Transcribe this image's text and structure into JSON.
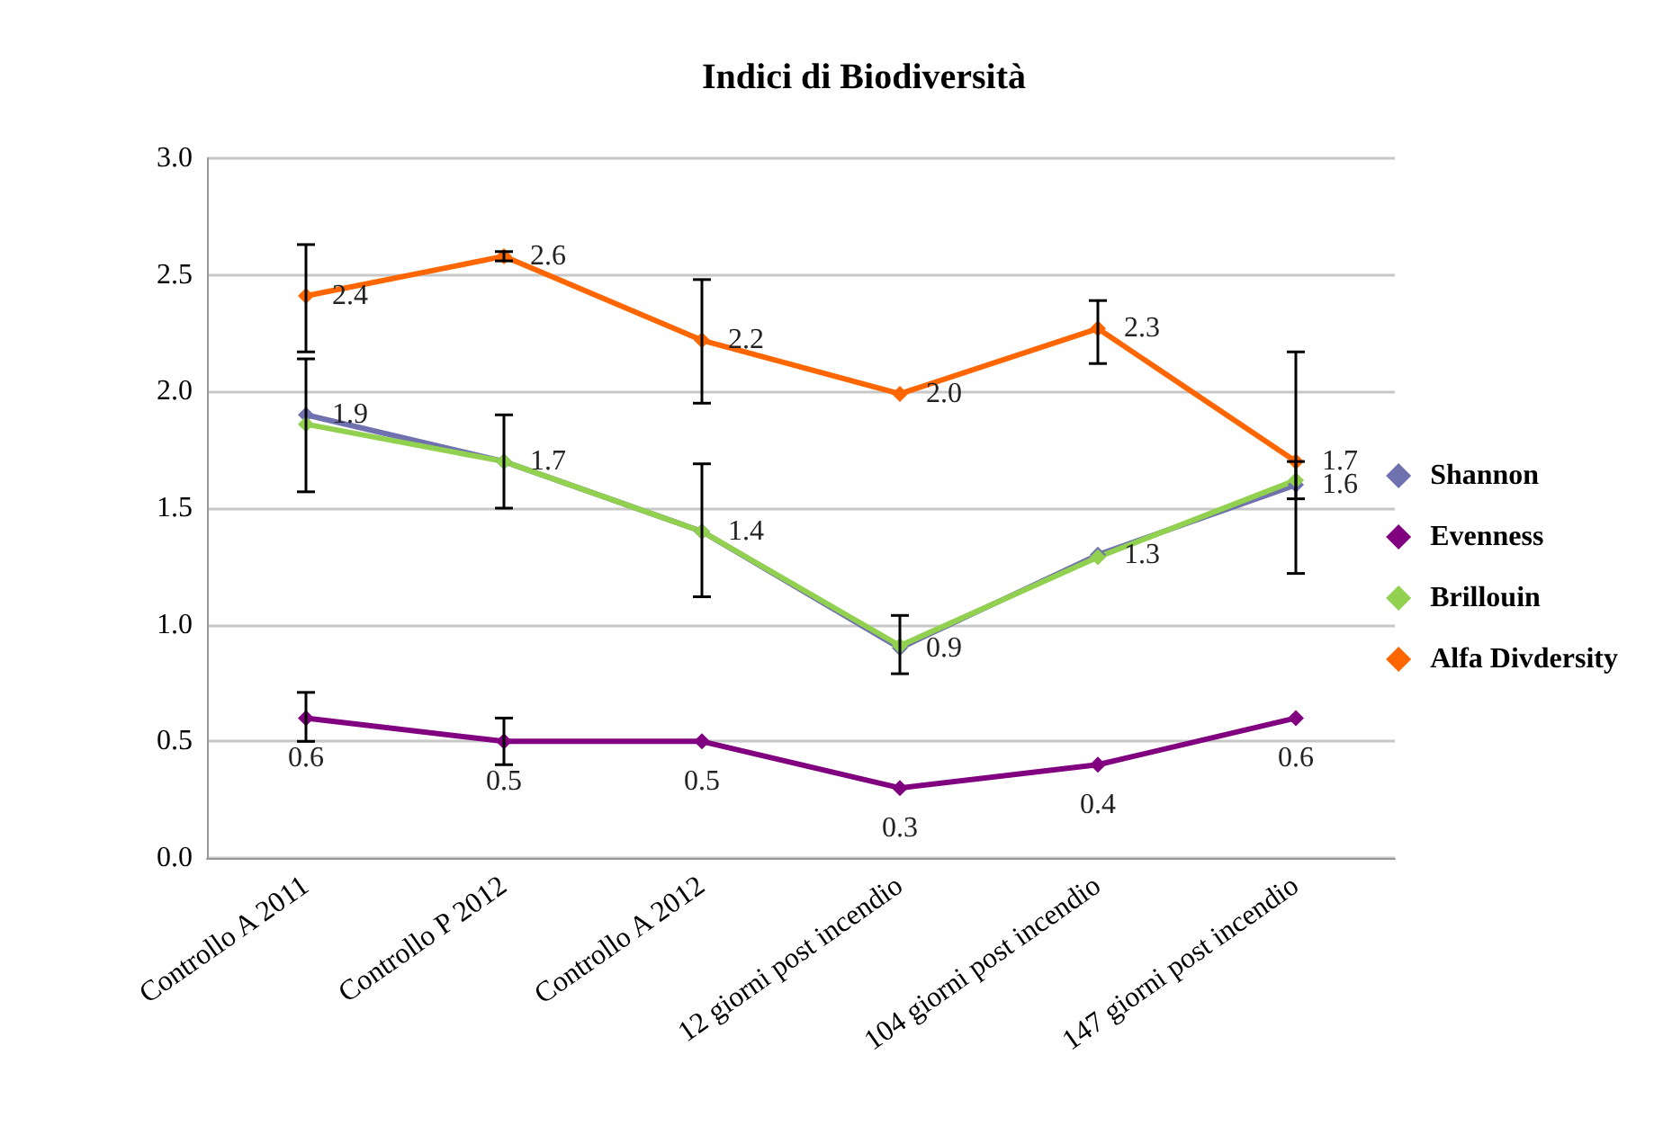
{
  "chart_data": {
    "type": "line",
    "title": "Indici di Biodiversità",
    "categories": [
      "Controllo A 2011",
      "Controllo P 2012",
      "Controllo A 2012",
      "12 giorni post incendio",
      "104 giorni post incendio",
      "147 giorni post incendio"
    ],
    "series": [
      {
        "name": "Shannon",
        "color": "#7072b0",
        "values": [
          1.9,
          1.7,
          1.4,
          0.9,
          1.3,
          1.6
        ],
        "value_labels": [
          "1.9",
          "1.7",
          "1.4",
          "0.9",
          "1.3",
          "1.6"
        ],
        "errors": [
          [
            1.57,
            2.14
          ],
          [
            1.5,
            1.9
          ],
          [
            1.12,
            1.69
          ],
          [
            0.79,
            1.04
          ],
          null,
          [
            1.54,
            1.7
          ]
        ]
      },
      {
        "name": "Evenness",
        "color": "#800080",
        "values": [
          0.6,
          0.5,
          0.5,
          0.3,
          0.4,
          0.6
        ],
        "value_labels": [
          "0.6",
          "0.5",
          "0.5",
          "0.3",
          "0.4",
          "0.6"
        ],
        "errors": [
          [
            0.5,
            0.71
          ],
          [
            0.4,
            0.6
          ],
          null,
          null,
          null,
          null
        ]
      },
      {
        "name": "Brillouin",
        "color": "#92d050",
        "values": [
          1.86,
          1.7,
          1.4,
          0.91,
          1.29,
          1.62
        ]
      },
      {
        "name": "Alfa Divdersity",
        "color": "#ff6600",
        "values": [
          2.41,
          2.58,
          2.22,
          1.99,
          2.27,
          1.7
        ],
        "value_labels": [
          "2.4",
          "2.6",
          "2.2",
          "2.0",
          "2.3",
          "1.7"
        ],
        "errors": [
          [
            2.17,
            2.63
          ],
          [
            2.56,
            2.6
          ],
          [
            1.95,
            2.48
          ],
          null,
          [
            2.12,
            2.39
          ],
          [
            1.22,
            2.17
          ]
        ]
      }
    ],
    "ylim": [
      0,
      3
    ],
    "yticks": [
      {
        "value": 0,
        "label": "0.0"
      },
      {
        "value": 0.5,
        "label": "0.5"
      },
      {
        "value": 1,
        "label": "1.0"
      },
      {
        "value": 1.5,
        "label": "1.5"
      },
      {
        "value": 2,
        "label": "2.0"
      },
      {
        "value": 2.5,
        "label": "2.5"
      },
      {
        "value": 3,
        "label": "3.0"
      }
    ],
    "grid": "y",
    "legend": "right",
    "marker": "diamond",
    "line_style": "solid"
  }
}
